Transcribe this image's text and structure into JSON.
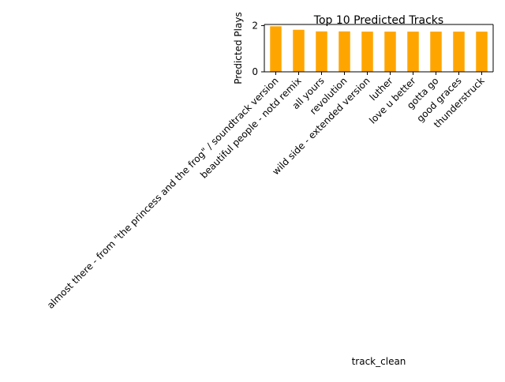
{
  "chart_data": {
    "type": "bar",
    "title": "Top 10 Predicted Tracks",
    "xlabel": "track_clean",
    "ylabel": "Predicted Plays",
    "categories": [
      "almost there - from \"the princess and the frog\" / soundtrack version",
      "beautiful people - notd remix",
      "all yours",
      "revolution",
      "wild side - extended version",
      "luther",
      "love u better",
      "gotta go",
      "good graces",
      "thunderstruck"
    ],
    "values": [
      1.97,
      1.82,
      1.75,
      1.75,
      1.74,
      1.74,
      1.74,
      1.74,
      1.74,
      1.74
    ],
    "ylim": [
      0,
      2.05
    ],
    "yticks": [
      0,
      2
    ],
    "bar_color": "#ffa500",
    "grid": false,
    "legend": false
  }
}
